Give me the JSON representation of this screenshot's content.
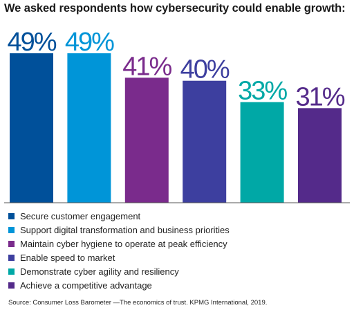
{
  "chart_data": {
    "type": "bar",
    "title": "We asked respondents how cybersecurity could enable growth:",
    "categories": [
      "Secure customer engagement",
      "Support digital transformation and business priorities",
      "Maintain cyber hygiene to operate at peak efficiency",
      "Enable speed to market",
      "Demonstrate cyber agility and resiliency",
      "Achieve a competitive advantage"
    ],
    "values": [
      49,
      49,
      41,
      40,
      33,
      31
    ],
    "value_labels": [
      "49%",
      "49%",
      "41%",
      "40%",
      "33%",
      "31%"
    ],
    "colors": [
      "#00509A",
      "#0095D8",
      "#7A2B8C",
      "#3D3F9F",
      "#00A8A6",
      "#542A8A"
    ],
    "label_colors": [
      "#00509A",
      "#0095D8",
      "#7A2B8C",
      "#3D3F9F",
      "#00A8A6",
      "#542A8A"
    ],
    "ylim": [
      0,
      49
    ],
    "xlabel": "",
    "ylabel": "",
    "grid": false,
    "legend_placement": "bottom"
  },
  "source": "Source: Consumer Loss Barometer —The economics of trust. KPMG International, 2019."
}
